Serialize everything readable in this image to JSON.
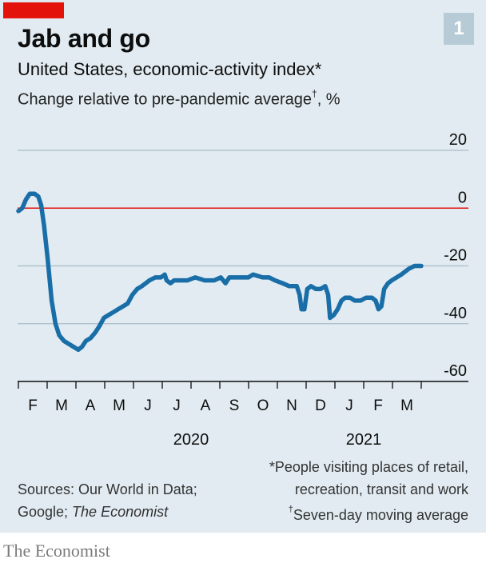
{
  "header": {
    "title": "Jab and go",
    "badge": "1",
    "subtitle": "United States, economic-activity index*",
    "subtitle2_main": "Change relative to pre-pandemic average",
    "subtitle2_dagger": "†",
    "subtitle2_suffix": ", %"
  },
  "chart_data": {
    "type": "line",
    "title": "United States, economic-activity index*",
    "ylabel": "Change relative to pre-pandemic average, %",
    "ylim": [
      -60,
      20
    ],
    "yticks": [
      "20",
      "0",
      "-20",
      "-40",
      "-60"
    ],
    "months": [
      "F",
      "M",
      "A",
      "M",
      "J",
      "J",
      "A",
      "S",
      "O",
      "N",
      "D",
      "J",
      "F",
      "M"
    ],
    "years": [
      "2020",
      "2021"
    ],
    "x_start": "2020-02-01",
    "x_end": "2021-03-31",
    "series": [
      {
        "color": "#1a6ea8",
        "points": [
          [
            "2020-02-01",
            -1
          ],
          [
            "2020-02-05",
            0
          ],
          [
            "2020-02-09",
            3
          ],
          [
            "2020-02-13",
            5
          ],
          [
            "2020-02-18",
            5
          ],
          [
            "2020-02-22",
            4
          ],
          [
            "2020-02-25",
            1
          ],
          [
            "2020-02-28",
            -6
          ],
          [
            "2020-03-03",
            -18
          ],
          [
            "2020-03-07",
            -32
          ],
          [
            "2020-03-11",
            -40
          ],
          [
            "2020-03-15",
            -44
          ],
          [
            "2020-03-20",
            -46
          ],
          [
            "2020-03-25",
            -47
          ],
          [
            "2020-03-30",
            -48
          ],
          [
            "2020-04-04",
            -49
          ],
          [
            "2020-04-08",
            -48
          ],
          [
            "2020-04-12",
            -46
          ],
          [
            "2020-04-17",
            -45
          ],
          [
            "2020-04-22",
            -43
          ],
          [
            "2020-04-26",
            -41
          ],
          [
            "2020-05-01",
            -38
          ],
          [
            "2020-05-06",
            -37
          ],
          [
            "2020-05-11",
            -36
          ],
          [
            "2020-05-16",
            -35
          ],
          [
            "2020-05-21",
            -34
          ],
          [
            "2020-05-26",
            -33
          ],
          [
            "2020-05-31",
            -30
          ],
          [
            "2020-06-05",
            -28
          ],
          [
            "2020-06-10",
            -27
          ],
          [
            "2020-06-14",
            -26
          ],
          [
            "2020-06-18",
            -25
          ],
          [
            "2020-06-24",
            -24
          ],
          [
            "2020-06-30",
            -24
          ],
          [
            "2020-07-04",
            -23
          ],
          [
            "2020-07-06",
            -25
          ],
          [
            "2020-07-10",
            -26
          ],
          [
            "2020-07-14",
            -25
          ],
          [
            "2020-07-20",
            -25
          ],
          [
            "2020-07-28",
            -25
          ],
          [
            "2020-08-05",
            -24
          ],
          [
            "2020-08-15",
            -25
          ],
          [
            "2020-08-25",
            -25
          ],
          [
            "2020-09-01",
            -24
          ],
          [
            "2020-09-06",
            -26
          ],
          [
            "2020-09-10",
            -24
          ],
          [
            "2020-09-20",
            -24
          ],
          [
            "2020-09-30",
            -24
          ],
          [
            "2020-10-05",
            -23
          ],
          [
            "2020-10-15",
            -24
          ],
          [
            "2020-10-22",
            -24
          ],
          [
            "2020-10-28",
            -25
          ],
          [
            "2020-11-05",
            -26
          ],
          [
            "2020-11-12",
            -27
          ],
          [
            "2020-11-20",
            -27
          ],
          [
            "2020-11-23",
            -30
          ],
          [
            "2020-11-25",
            -35
          ],
          [
            "2020-11-28",
            -35
          ],
          [
            "2020-12-01",
            -28
          ],
          [
            "2020-12-05",
            -27
          ],
          [
            "2020-12-10",
            -28
          ],
          [
            "2020-12-15",
            -28
          ],
          [
            "2020-12-20",
            -27
          ],
          [
            "2020-12-23",
            -30
          ],
          [
            "2020-12-25",
            -38
          ],
          [
            "2020-12-29",
            -37
          ],
          [
            "2021-01-02",
            -35
          ],
          [
            "2021-01-06",
            -32
          ],
          [
            "2021-01-10",
            -31
          ],
          [
            "2021-01-15",
            -31
          ],
          [
            "2021-01-20",
            -32
          ],
          [
            "2021-01-26",
            -32
          ],
          [
            "2021-02-01",
            -31
          ],
          [
            "2021-02-07",
            -31
          ],
          [
            "2021-02-11",
            -32
          ],
          [
            "2021-02-14",
            -35
          ],
          [
            "2021-02-17",
            -34
          ],
          [
            "2021-02-20",
            -28
          ],
          [
            "2021-02-24",
            -26
          ],
          [
            "2021-02-28",
            -25
          ],
          [
            "2021-03-05",
            -24
          ],
          [
            "2021-03-10",
            -23
          ],
          [
            "2021-03-14",
            -22
          ],
          [
            "2021-03-18",
            -21
          ],
          [
            "2021-03-24",
            -20
          ],
          [
            "2021-03-31",
            -20
          ]
        ]
      }
    ],
    "grid": true,
    "zero_line_color": "#e3120b"
  },
  "footer": {
    "sources_line1": "Sources: Our World in Data;",
    "sources_line2_prefix": "Google; ",
    "sources_line2_italic": "The Economist",
    "footnote_line1": "*People visiting places of retail,",
    "footnote_line2": "recreation, transit and work",
    "footnote_line3_dagger": "†",
    "footnote_line3": "Seven-day moving average"
  },
  "brand": "The Economist",
  "colors": {
    "panel": "#e1ebf1",
    "accent_red": "#e3120b",
    "line": "#1a6ea8",
    "grid": "#a9bcc7"
  }
}
